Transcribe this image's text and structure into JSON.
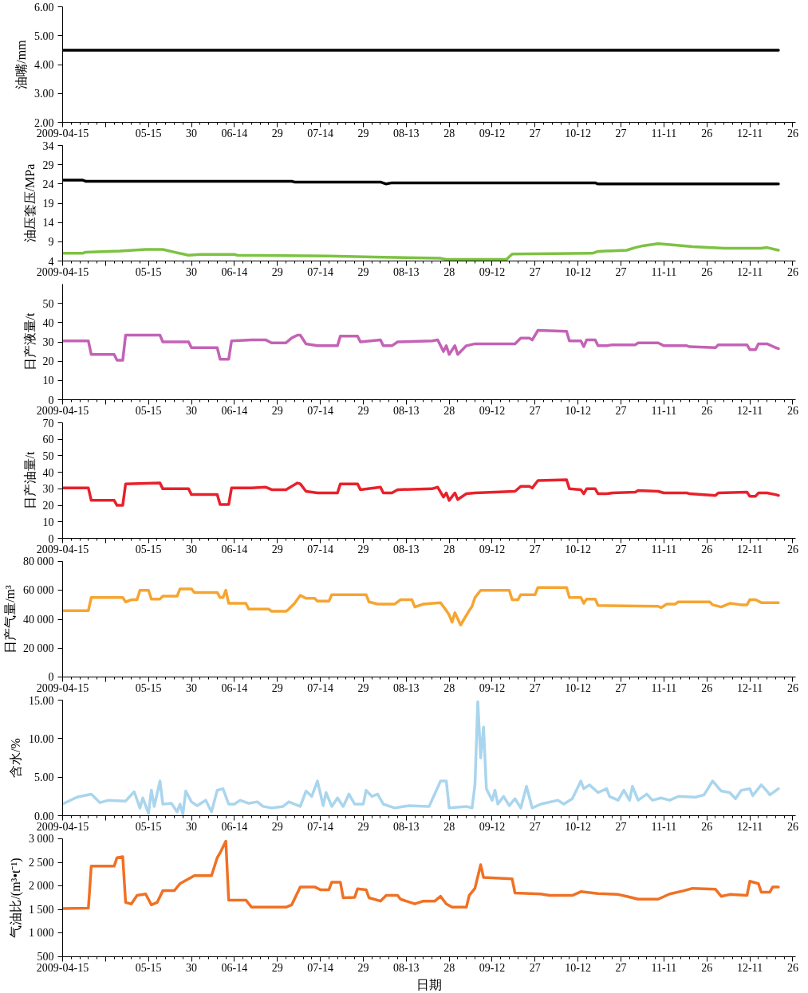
{
  "chart_data": [
    {
      "type": "line",
      "ylabel": "油嘴/mm",
      "xlim": [
        "2009-04-15",
        "2009-12-27"
      ],
      "ylim": [
        2,
        6
      ],
      "yticks": [
        {
          "value": 2,
          "label": "2.00"
        },
        {
          "value": 3,
          "label": "3.00"
        },
        {
          "value": 4,
          "label": "4.00"
        },
        {
          "value": 5,
          "label": "5.00"
        },
        {
          "value": 6,
          "label": "6.00"
        }
      ],
      "xticks": [
        {
          "value": "2009-04-15",
          "label": "2009-04-15"
        },
        {
          "value": "2009-04-30",
          "label": null
        },
        {
          "value": "2009-05-15",
          "label": "05-15"
        },
        {
          "value": "2009-05-30",
          "label": "30"
        },
        {
          "value": "2009-06-14",
          "label": "06-14"
        },
        {
          "value": "2009-06-29",
          "label": "29"
        },
        {
          "value": "2009-07-14",
          "label": "07-14"
        },
        {
          "value": "2009-07-29",
          "label": "29"
        },
        {
          "value": "2009-08-13",
          "label": "08-13"
        },
        {
          "value": "2009-08-28",
          "label": "28"
        },
        {
          "value": "2009-09-12",
          "label": "09-12"
        },
        {
          "value": "2009-09-27",
          "label": "27"
        },
        {
          "value": "2009-10-12",
          "label": "10-12"
        },
        {
          "value": "2009-10-27",
          "label": "27"
        },
        {
          "value": "2009-11-11",
          "label": "11-11"
        },
        {
          "value": "2009-11-26",
          "label": "26"
        },
        {
          "value": "2009-12-11",
          "label": "12-11"
        },
        {
          "value": "2009-12-26",
          "label": "26"
        }
      ],
      "x": [
        "2009-04-15",
        "2009-12-21"
      ],
      "values": [
        4.5,
        4.5
      ],
      "color": "#000000"
    },
    {
      "type": "line",
      "ylabel": "油压套压/MPa",
      "xlim": [
        "2009-04-15",
        "2009-12-27"
      ],
      "ylim": [
        4,
        34
      ],
      "yticks": [
        4,
        9,
        14,
        19,
        24,
        29,
        34
      ],
      "xticks": [
        {
          "value": "2009-04-15",
          "label": "2009-04-15"
        },
        {
          "value": "2009-04-30",
          "label": null
        },
        {
          "value": "2009-05-15",
          "label": "05-15"
        },
        {
          "value": "2009-05-30",
          "label": "30"
        },
        {
          "value": "2009-06-14",
          "label": "06-14"
        },
        {
          "value": "2009-06-29",
          "label": "29"
        },
        {
          "value": "2009-07-14",
          "label": "07-14"
        },
        {
          "value": "2009-07-29",
          "label": "29"
        },
        {
          "value": "2009-08-13",
          "label": "08-13"
        },
        {
          "value": "2009-08-28",
          "label": "28"
        },
        {
          "value": "2009-09-12",
          "label": "09-12"
        },
        {
          "value": "2009-09-27",
          "label": "27"
        },
        {
          "value": "2009-10-12",
          "label": "10-12"
        },
        {
          "value": "2009-10-27",
          "label": "27"
        },
        {
          "value": "2009-11-11",
          "label": "11-11"
        },
        {
          "value": "2009-11-26",
          "label": "26"
        },
        {
          "value": "2009-12-11",
          "label": "12-11"
        },
        {
          "value": "2009-12-26",
          "label": "26"
        }
      ],
      "series": [
        {
          "color": "#000000",
          "x": [
            "2009-04-15",
            "2009-04-22",
            "2009-04-23",
            "2009-07-04",
            "2009-07-05",
            "2009-08-04",
            "2009-08-06",
            "2009-08-08",
            "2009-10-18",
            "2009-10-19",
            "2009-12-21"
          ],
          "values": [
            25.0,
            25.0,
            24.7,
            24.7,
            24.5,
            24.5,
            24.0,
            24.3,
            24.3,
            24.0,
            24.0
          ]
        },
        {
          "color": "#7dc242",
          "x": [
            "2009-04-15",
            "2009-04-22",
            "2009-04-23",
            "2009-05-05",
            "2009-05-14",
            "2009-05-20",
            "2009-05-24",
            "2009-05-29",
            "2009-06-02",
            "2009-06-14",
            "2009-06-15",
            "2009-07-17",
            "2009-08-05",
            "2009-08-25",
            "2009-08-27",
            "2009-09-17",
            "2009-09-19",
            "2009-10-17",
            "2009-10-19",
            "2009-10-29",
            "2009-11-01",
            "2009-11-04",
            "2009-11-09",
            "2009-11-14",
            "2009-11-21",
            "2009-12-02",
            "2009-12-15",
            "2009-12-17",
            "2009-12-21"
          ],
          "values": [
            6.0,
            6.0,
            6.3,
            6.6,
            7.0,
            7.0,
            6.3,
            5.5,
            5.7,
            5.7,
            5.5,
            5.3,
            5.0,
            4.7,
            4.4,
            4.4,
            5.8,
            6.0,
            6.5,
            6.8,
            7.5,
            8.0,
            8.5,
            8.2,
            7.7,
            7.3,
            7.3,
            7.5,
            6.8
          ]
        }
      ]
    },
    {
      "type": "line",
      "ylabel": "日产液量/t",
      "xlim": [
        "2009-04-15",
        "2009-12-27"
      ],
      "ylim": [
        0,
        60
      ],
      "yticks": [
        0,
        10,
        20,
        30,
        40,
        50
      ],
      "xticks": [
        {
          "value": "2009-04-15",
          "label": "2009-04-15"
        },
        {
          "value": "2009-04-30",
          "label": null
        },
        {
          "value": "2009-05-15",
          "label": "05-15"
        },
        {
          "value": "2009-05-30",
          "label": "30"
        },
        {
          "value": "2009-06-14",
          "label": "06-14"
        },
        {
          "value": "2009-06-29",
          "label": "29"
        },
        {
          "value": "2009-07-14",
          "label": "07-14"
        },
        {
          "value": "2009-07-29",
          "label": "29"
        },
        {
          "value": "2009-08-13",
          "label": "08-13"
        },
        {
          "value": "2009-08-28",
          "label": "28"
        },
        {
          "value": "2009-09-12",
          "label": "09-12"
        },
        {
          "value": "2009-09-27",
          "label": "27"
        },
        {
          "value": "2009-10-12",
          "label": "10-12"
        },
        {
          "value": "2009-10-27",
          "label": "27"
        },
        {
          "value": "2009-11-11",
          "label": "11-11"
        },
        {
          "value": "2009-11-26",
          "label": "26"
        },
        {
          "value": "2009-12-11",
          "label": "12-11"
        },
        {
          "value": "2009-12-26",
          "label": "26"
        }
      ],
      "color": "#c462b6",
      "x": [
        "2009-04-15",
        "2009-04-24",
        "2009-04-25",
        "2009-05-03",
        "2009-05-04",
        "2009-05-06",
        "2009-05-07",
        "2009-05-19",
        "2009-05-20",
        "2009-05-29",
        "2009-05-30",
        "2009-06-08",
        "2009-06-09",
        "2009-06-12",
        "2009-06-13",
        "2009-06-20",
        "2009-06-25",
        "2009-06-27",
        "2009-07-02",
        "2009-07-04",
        "2009-07-06",
        "2009-07-07",
        "2009-07-09",
        "2009-07-13",
        "2009-07-20",
        "2009-07-21",
        "2009-07-27",
        "2009-07-28",
        "2009-08-04",
        "2009-08-05",
        "2009-08-08",
        "2009-08-10",
        "2009-08-22",
        "2009-08-24",
        "2009-08-26",
        "2009-08-27",
        "2009-08-28",
        "2009-08-30",
        "2009-08-31",
        "2009-09-03",
        "2009-09-06",
        "2009-09-20",
        "2009-09-22",
        "2009-09-25",
        "2009-09-26",
        "2009-09-28",
        "2009-10-08",
        "2009-10-09",
        "2009-10-13",
        "2009-10-14",
        "2009-10-15",
        "2009-10-18",
        "2009-10-19",
        "2009-10-22",
        "2009-10-24",
        "2009-11-01",
        "2009-11-02",
        "2009-11-09",
        "2009-11-11",
        "2009-11-19",
        "2009-11-20",
        "2009-11-29",
        "2009-11-30",
        "2009-12-10",
        "2009-12-11",
        "2009-12-13",
        "2009-12-14",
        "2009-12-17",
        "2009-12-20",
        "2009-12-21"
      ],
      "values": [
        30.5,
        30.5,
        23.5,
        23.5,
        20.5,
        20.5,
        33.5,
        33.5,
        30,
        30,
        27,
        27,
        21,
        21,
        30.5,
        31,
        31,
        29.5,
        29.5,
        32,
        33.5,
        33.5,
        29,
        28,
        28,
        33,
        33,
        30,
        31,
        28,
        28,
        30,
        30.5,
        31,
        25,
        28,
        23.5,
        28,
        23.5,
        28,
        29,
        29,
        32,
        32,
        31,
        36,
        35.5,
        30.5,
        30.5,
        27.5,
        31,
        31,
        28,
        28,
        28.5,
        28.5,
        29.5,
        29.5,
        28,
        28,
        27.5,
        27,
        28.5,
        28.5,
        26,
        26,
        29,
        29,
        27,
        26.5
      ]
    },
    {
      "type": "line",
      "ylabel": "日产油量/t",
      "xlim": [
        "2009-04-15",
        "2009-12-27"
      ],
      "ylim": [
        0,
        70
      ],
      "yticks": [
        0,
        10,
        20,
        30,
        40,
        50,
        60,
        70
      ],
      "xticks": [
        {
          "value": "2009-04-15",
          "label": "2009-04-15"
        },
        {
          "value": "2009-04-30",
          "label": null
        },
        {
          "value": "2009-05-15",
          "label": "05-15"
        },
        {
          "value": "2009-05-30",
          "label": "30"
        },
        {
          "value": "2009-06-14",
          "label": "06-14"
        },
        {
          "value": "2009-06-29",
          "label": "29"
        },
        {
          "value": "2009-07-14",
          "label": "07-14"
        },
        {
          "value": "2009-07-29",
          "label": "29"
        },
        {
          "value": "2009-08-13",
          "label": "08-13"
        },
        {
          "value": "2009-08-28",
          "label": "28"
        },
        {
          "value": "2009-09-12",
          "label": "09-12"
        },
        {
          "value": "2009-09-27",
          "label": "27"
        },
        {
          "value": "2009-10-12",
          "label": "10-12"
        },
        {
          "value": "2009-10-27",
          "label": "27"
        },
        {
          "value": "2009-11-11",
          "label": "11-11"
        },
        {
          "value": "2009-11-26",
          "label": "26"
        },
        {
          "value": "2009-12-11",
          "label": "12-11"
        },
        {
          "value": "2009-12-26",
          "label": "26"
        }
      ],
      "color": "#e8212b",
      "x": [
        "2009-04-15",
        "2009-04-24",
        "2009-04-25",
        "2009-05-03",
        "2009-05-04",
        "2009-05-06",
        "2009-05-07",
        "2009-05-19",
        "2009-05-20",
        "2009-05-29",
        "2009-05-30",
        "2009-06-08",
        "2009-06-09",
        "2009-06-12",
        "2009-06-13",
        "2009-06-20",
        "2009-06-25",
        "2009-06-27",
        "2009-07-02",
        "2009-07-04",
        "2009-07-06",
        "2009-07-07",
        "2009-07-09",
        "2009-07-13",
        "2009-07-20",
        "2009-07-21",
        "2009-07-27",
        "2009-07-28",
        "2009-08-04",
        "2009-08-05",
        "2009-08-08",
        "2009-08-10",
        "2009-08-22",
        "2009-08-24",
        "2009-08-26",
        "2009-08-27",
        "2009-08-28",
        "2009-08-30",
        "2009-08-31",
        "2009-09-03",
        "2009-09-06",
        "2009-09-20",
        "2009-09-22",
        "2009-09-25",
        "2009-09-26",
        "2009-09-28",
        "2009-10-08",
        "2009-10-09",
        "2009-10-13",
        "2009-10-14",
        "2009-10-15",
        "2009-10-18",
        "2009-10-19",
        "2009-10-22",
        "2009-10-24",
        "2009-11-01",
        "2009-11-02",
        "2009-11-09",
        "2009-11-11",
        "2009-11-19",
        "2009-11-20",
        "2009-11-29",
        "2009-11-30",
        "2009-12-10",
        "2009-12-11",
        "2009-12-13",
        "2009-12-14",
        "2009-12-17",
        "2009-12-20",
        "2009-12-21"
      ],
      "values": [
        30.5,
        30.5,
        23,
        23,
        20,
        20,
        33,
        33.5,
        30,
        30,
        26.5,
        26.5,
        20.5,
        20.5,
        30.5,
        30.5,
        31,
        29.5,
        29.5,
        31.5,
        33.5,
        33,
        28.5,
        27.5,
        27.5,
        33,
        33,
        29.5,
        31,
        27.5,
        27.5,
        29.5,
        30,
        31,
        25,
        27.5,
        23,
        27.5,
        23.5,
        27,
        27.5,
        28.5,
        31.5,
        31.5,
        30.5,
        35,
        35.5,
        30,
        29.5,
        27,
        30,
        30,
        27,
        27,
        27.5,
        28,
        29,
        28.5,
        27.5,
        27.5,
        27,
        26,
        27.5,
        28,
        25.5,
        25.5,
        27.5,
        27.5,
        26.5,
        26
      ]
    },
    {
      "type": "line",
      "ylabel": "日产气量/m³",
      "xlim": [
        "2009-04-15",
        "2009-12-27"
      ],
      "ylim": [
        0,
        80000
      ],
      "yticks": [
        0,
        {
          "value": 20000,
          "label": "20 000"
        },
        {
          "value": 40000,
          "label": "40 000"
        },
        {
          "value": 60000,
          "label": "60 000"
        },
        {
          "value": 80000,
          "label": "80 000"
        }
      ],
      "xticks": [
        {
          "value": "2009-04-15",
          "label": "2009-04-15"
        },
        {
          "value": "2009-04-30",
          "label": null
        },
        {
          "value": "2009-05-15",
          "label": "05-15"
        },
        {
          "value": "2009-05-30",
          "label": "30"
        },
        {
          "value": "2009-06-14",
          "label": "06-14"
        },
        {
          "value": "2009-06-29",
          "label": "29"
        },
        {
          "value": "2009-07-14",
          "label": "07-14"
        },
        {
          "value": "2009-07-29",
          "label": "29"
        },
        {
          "value": "2009-08-13",
          "label": "08-13"
        },
        {
          "value": "2009-08-28",
          "label": "28"
        },
        {
          "value": "2009-09-12",
          "label": "09-12"
        },
        {
          "value": "2009-09-27",
          "label": "27"
        },
        {
          "value": "2009-10-12",
          "label": "10-12"
        },
        {
          "value": "2009-10-27",
          "label": "27"
        },
        {
          "value": "2009-11-11",
          "label": "11-11"
        },
        {
          "value": "2009-11-26",
          "label": "26"
        },
        {
          "value": "2009-12-11",
          "label": "12-11"
        },
        {
          "value": "2009-12-26",
          "label": "26"
        }
      ],
      "color": "#f6a531",
      "x": [
        "2009-04-15",
        "2009-04-24",
        "2009-04-25",
        "2009-05-06",
        "2009-05-07",
        "2009-05-09",
        "2009-05-11",
        "2009-05-12",
        "2009-05-15",
        "2009-05-16",
        "2009-05-19",
        "2009-05-20",
        "2009-05-25",
        "2009-05-26",
        "2009-05-30",
        "2009-05-31",
        "2009-06-08",
        "2009-06-09",
        "2009-06-10",
        "2009-06-11",
        "2009-06-12",
        "2009-06-18",
        "2009-06-19",
        "2009-06-26",
        "2009-06-27",
        "2009-07-02",
        "2009-07-03",
        "2009-07-05",
        "2009-07-07",
        "2009-07-09",
        "2009-07-12",
        "2009-07-13",
        "2009-07-17",
        "2009-07-18",
        "2009-07-30",
        "2009-07-31",
        "2009-08-03",
        "2009-08-09",
        "2009-08-11",
        "2009-08-15",
        "2009-08-16",
        "2009-08-19",
        "2009-08-25",
        "2009-08-27",
        "2009-08-28",
        "2009-08-29",
        "2009-08-30",
        "2009-09-01",
        "2009-09-04",
        "2009-09-05",
        "2009-09-06",
        "2009-09-08",
        "2009-09-18",
        "2009-09-19",
        "2009-09-21",
        "2009-09-22",
        "2009-09-27",
        "2009-09-28",
        "2009-10-08",
        "2009-10-09",
        "2009-10-13",
        "2009-10-14",
        "2009-10-15",
        "2009-10-18",
        "2009-10-19",
        "2009-11-09",
        "2009-11-10",
        "2009-11-12",
        "2009-11-15",
        "2009-11-16",
        "2009-11-27",
        "2009-11-28",
        "2009-12-01",
        "2009-12-04",
        "2009-12-08",
        "2009-12-10",
        "2009-12-11",
        "2009-12-13",
        "2009-12-15",
        "2009-12-21"
      ],
      "values": [
        46000,
        46000,
        55000,
        55000,
        52000,
        53500,
        53500,
        60000,
        60000,
        54000,
        54000,
        56000,
        56000,
        61000,
        61000,
        58500,
        58500,
        55000,
        55000,
        60000,
        51000,
        51000,
        47000,
        47000,
        45500,
        45500,
        47000,
        51000,
        56500,
        54500,
        54500,
        52500,
        52500,
        57000,
        57000,
        52000,
        50500,
        50500,
        53500,
        53500,
        48500,
        50500,
        51500,
        46000,
        43000,
        38000,
        44500,
        36000,
        46000,
        49000,
        55000,
        60000,
        60000,
        53500,
        53500,
        57000,
        57000,
        62000,
        62000,
        55000,
        55000,
        51000,
        54000,
        54000,
        49500,
        49000,
        48000,
        50500,
        50500,
        52000,
        52000,
        50000,
        48500,
        51000,
        50000,
        50000,
        53500,
        53500,
        51500,
        51500
      ]
    },
    {
      "type": "line",
      "ylabel": "含水/%",
      "xlim": [
        "2009-04-15",
        "2009-12-27"
      ],
      "ylim": [
        0,
        15
      ],
      "yticks": [
        {
          "value": 0,
          "label": "0.00"
        },
        {
          "value": 5,
          "label": "5.00"
        },
        {
          "value": 10,
          "label": "10.00"
        },
        {
          "value": 15,
          "label": "15.00"
        }
      ],
      "xticks": [
        {
          "value": "2009-04-15",
          "label": "2009-04-15"
        },
        {
          "value": "2009-04-30",
          "label": null
        },
        {
          "value": "2009-05-15",
          "label": "05-15"
        },
        {
          "value": "2009-05-30",
          "label": "30"
        },
        {
          "value": "2009-06-14",
          "label": "06-14"
        },
        {
          "value": "2009-06-29",
          "label": "29"
        },
        {
          "value": "2009-07-14",
          "label": "07-14"
        },
        {
          "value": "2009-07-29",
          "label": "29"
        },
        {
          "value": "2009-08-13",
          "label": "08-13"
        },
        {
          "value": "2009-08-28",
          "label": "28"
        },
        {
          "value": "2009-09-12",
          "label": "09-12"
        },
        {
          "value": "2009-09-27",
          "label": "27"
        },
        {
          "value": "2009-10-12",
          "label": "10-12"
        },
        {
          "value": "2009-10-27",
          "label": "27"
        },
        {
          "value": "2009-11-11",
          "label": "11-11"
        },
        {
          "value": "2009-11-26",
          "label": "26"
        },
        {
          "value": "2009-12-11",
          "label": "12-11"
        },
        {
          "value": "2009-12-26",
          "label": "26"
        }
      ],
      "color": "#a9d5ee",
      "x": [
        "2009-04-15",
        "2009-04-20",
        "2009-04-25",
        "2009-04-28",
        "2009-05-01",
        "2009-05-07",
        "2009-05-10",
        "2009-05-12",
        "2009-05-13",
        "2009-05-15",
        "2009-05-16",
        "2009-05-17",
        "2009-05-19",
        "2009-05-20",
        "2009-05-23",
        "2009-05-25",
        "2009-05-26",
        "2009-05-27",
        "2009-05-28",
        "2009-05-30",
        "2009-06-01",
        "2009-06-04",
        "2009-06-06",
        "2009-06-08",
        "2009-06-10",
        "2009-06-12",
        "2009-06-14",
        "2009-06-16",
        "2009-06-19",
        "2009-06-22",
        "2009-06-24",
        "2009-06-27",
        "2009-07-01",
        "2009-07-03",
        "2009-07-07",
        "2009-07-09",
        "2009-07-11",
        "2009-07-13",
        "2009-07-15",
        "2009-07-16",
        "2009-07-18",
        "2009-07-20",
        "2009-07-22",
        "2009-07-24",
        "2009-07-26",
        "2009-07-29",
        "2009-07-30",
        "2009-08-01",
        "2009-08-03",
        "2009-08-05",
        "2009-08-09",
        "2009-08-14",
        "2009-08-21",
        "2009-08-25",
        "2009-08-27",
        "2009-08-28",
        "2009-09-03",
        "2009-09-05",
        "2009-09-06",
        "2009-09-07",
        "2009-09-08",
        "2009-09-09",
        "2009-09-10",
        "2009-09-12",
        "2009-09-13",
        "2009-09-14",
        "2009-09-16",
        "2009-09-18",
        "2009-09-20",
        "2009-09-22",
        "2009-09-24",
        "2009-09-26",
        "2009-09-29",
        "2009-10-05",
        "2009-10-07",
        "2009-10-10",
        "2009-10-13",
        "2009-10-14",
        "2009-10-16",
        "2009-10-19",
        "2009-10-22",
        "2009-10-23",
        "2009-10-26",
        "2009-10-28",
        "2009-10-30",
        "2009-10-31",
        "2009-11-02",
        "2009-11-05",
        "2009-11-07",
        "2009-11-10",
        "2009-11-13",
        "2009-11-16",
        "2009-11-22",
        "2009-11-25",
        "2009-11-28",
        "2009-12-01",
        "2009-12-04",
        "2009-12-06",
        "2009-12-08",
        "2009-12-11",
        "2009-12-12",
        "2009-12-15",
        "2009-12-17",
        "2009-12-18",
        "2009-12-21"
      ],
      "values": [
        1.5,
        2.4,
        2.8,
        1.7,
        2.0,
        1.9,
        3.1,
        1.0,
        2.3,
        0.3,
        3.3,
        1.2,
        4.5,
        1.5,
        1.6,
        0.5,
        1.5,
        0.2,
        3.2,
        1.8,
        1.3,
        2.0,
        0.5,
        3.3,
        3.5,
        1.5,
        1.5,
        2.0,
        1.6,
        1.8,
        1.2,
        1.0,
        1.2,
        1.8,
        1.2,
        3.2,
        2.5,
        4.5,
        1.3,
        3.0,
        1.2,
        2.3,
        1.2,
        2.8,
        1.5,
        1.5,
        3.3,
        2.5,
        2.8,
        1.5,
        1.0,
        1.3,
        1.2,
        4.5,
        4.5,
        1.0,
        1.2,
        1.0,
        4.0,
        14.8,
        7.5,
        11.5,
        3.5,
        2.0,
        3.3,
        1.5,
        2.5,
        1.3,
        2.2,
        1.0,
        3.8,
        1.0,
        1.5,
        2.0,
        1.5,
        2.2,
        4.5,
        3.5,
        4.0,
        3.0,
        3.5,
        2.5,
        2.0,
        3.3,
        2.0,
        3.8,
        2.0,
        2.8,
        2.0,
        2.3,
        2.0,
        2.5,
        2.4,
        2.7,
        4.5,
        3.2,
        3.0,
        2.2,
        3.3,
        3.5,
        2.6,
        4.0,
        3.2,
        2.7,
        3.5
      ]
    },
    {
      "type": "line",
      "ylabel": "气油比/(m³•t⁻¹)",
      "xlabel": "日期",
      "xlim": [
        "2009-04-15",
        "2009-12-27"
      ],
      "ylim": [
        500,
        3000
      ],
      "yticks": [
        500,
        {
          "value": 1000,
          "label": "1 000"
        },
        {
          "value": 1500,
          "label": "1 500"
        },
        {
          "value": 2000,
          "label": "2 000"
        },
        {
          "value": 2500,
          "label": "2 500"
        },
        {
          "value": 3000,
          "label": "3 000"
        }
      ],
      "xticks": [
        {
          "value": "2009-04-15",
          "label": "2009-04-15"
        },
        {
          "value": "2009-04-30",
          "label": null
        },
        {
          "value": "2009-05-15",
          "label": "05-15"
        },
        {
          "value": "2009-05-30",
          "label": "30"
        },
        {
          "value": "2009-06-14",
          "label": "06-14"
        },
        {
          "value": "2009-06-29",
          "label": "29"
        },
        {
          "value": "2009-07-14",
          "label": "07-14"
        },
        {
          "value": "2009-07-29",
          "label": "29"
        },
        {
          "value": "2009-08-13",
          "label": "08-13"
        },
        {
          "value": "2009-08-28",
          "label": "28"
        },
        {
          "value": "2009-09-12",
          "label": "09-12"
        },
        {
          "value": "2009-09-27",
          "label": "27"
        },
        {
          "value": "2009-10-12",
          "label": "10-12"
        },
        {
          "value": "2009-10-27",
          "label": "27"
        },
        {
          "value": "2009-11-11",
          "label": "11-11"
        },
        {
          "value": "2009-11-26",
          "label": "26"
        },
        {
          "value": "2009-12-11",
          "label": "12-11"
        },
        {
          "value": "2009-12-26",
          "label": "26"
        }
      ],
      "color": "#f07124",
      "x": [
        "2009-04-15",
        "2009-04-24",
        "2009-04-25",
        "2009-05-03",
        "2009-05-04",
        "2009-05-06",
        "2009-05-07",
        "2009-05-09",
        "2009-05-11",
        "2009-05-14",
        "2009-05-16",
        "2009-05-18",
        "2009-05-20",
        "2009-05-24",
        "2009-05-26",
        "2009-05-29",
        "2009-05-31",
        "2009-06-06",
        "2009-06-08",
        "2009-06-09",
        "2009-06-11",
        "2009-06-12",
        "2009-06-18",
        "2009-06-20",
        "2009-07-02",
        "2009-07-04",
        "2009-07-07",
        "2009-07-12",
        "2009-07-14",
        "2009-07-17",
        "2009-07-18",
        "2009-07-21",
        "2009-07-22",
        "2009-07-26",
        "2009-07-27",
        "2009-07-30",
        "2009-07-31",
        "2009-08-04",
        "2009-08-06",
        "2009-08-10",
        "2009-08-11",
        "2009-08-16",
        "2009-08-19",
        "2009-08-23",
        "2009-08-25",
        "2009-08-27",
        "2009-08-29",
        "2009-09-03",
        "2009-09-04",
        "2009-09-06",
        "2009-09-08",
        "2009-09-09",
        "2009-09-19",
        "2009-09-20",
        "2009-09-29",
        "2009-10-02",
        "2009-10-10",
        "2009-10-13",
        "2009-10-19",
        "2009-10-26",
        "2009-10-29",
        "2009-11-02",
        "2009-11-09",
        "2009-11-13",
        "2009-11-18",
        "2009-11-21",
        "2009-11-29",
        "2009-12-01",
        "2009-12-04",
        "2009-12-10",
        "2009-12-11",
        "2009-12-14",
        "2009-12-15",
        "2009-12-18",
        "2009-12-19",
        "2009-12-21"
      ],
      "values": [
        1520,
        1530,
        2420,
        2420,
        2600,
        2620,
        1650,
        1620,
        1800,
        1830,
        1600,
        1650,
        1900,
        1900,
        2050,
        2150,
        2220,
        2220,
        2600,
        2700,
        2950,
        1700,
        1700,
        1550,
        1550,
        1600,
        1980,
        1980,
        1920,
        1920,
        2080,
        2080,
        1750,
        1760,
        1940,
        1920,
        1750,
        1680,
        1800,
        1800,
        1720,
        1620,
        1680,
        1680,
        1780,
        1620,
        1550,
        1550,
        1800,
        1950,
        2450,
        2180,
        2150,
        1850,
        1830,
        1800,
        1800,
        1880,
        1840,
        1820,
        1780,
        1720,
        1720,
        1830,
        1900,
        1950,
        1930,
        1780,
        1820,
        1800,
        2100,
        2050,
        1870,
        1870,
        1980,
        1980
      ]
    }
  ]
}
